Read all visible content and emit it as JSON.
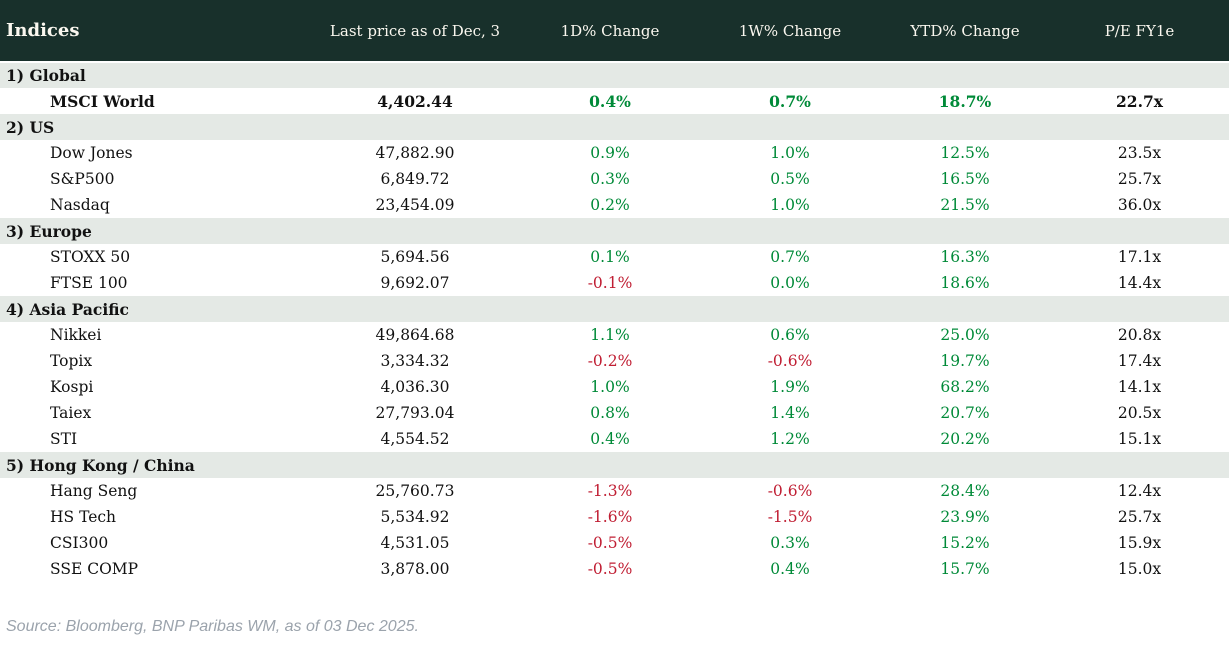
{
  "colors": {
    "header_bg": "#18302b",
    "header_text": "#faf7ef",
    "section_bg": "#e4e9e5",
    "positive": "#008a38",
    "negative": "#c01e33",
    "text": "#111111"
  },
  "header": {
    "columns": [
      "Indices",
      "Last price as of Dec, 3",
      "1D% Change",
      "1W% Change",
      "YTD% Change",
      "P/E FY1e"
    ]
  },
  "sections": [
    {
      "label": "1) Global",
      "rows": [
        {
          "name": "MSCI World",
          "last": "4,402.44",
          "d1": "0.4%",
          "w1": "0.7%",
          "ytd": "18.7%",
          "pe": "22.7x",
          "bold": true
        }
      ]
    },
    {
      "label": "2) US",
      "rows": [
        {
          "name": "Dow Jones",
          "last": "47,882.90",
          "d1": "0.9%",
          "w1": "1.0%",
          "ytd": "12.5%",
          "pe": "23.5x"
        },
        {
          "name": "S&P500",
          "last": "6,849.72",
          "d1": "0.3%",
          "w1": "0.5%",
          "ytd": "16.5%",
          "pe": "25.7x"
        },
        {
          "name": "Nasdaq",
          "last": "23,454.09",
          "d1": "0.2%",
          "w1": "1.0%",
          "ytd": "21.5%",
          "pe": "36.0x"
        }
      ]
    },
    {
      "label": "3) Europe",
      "rows": [
        {
          "name": "STOXX 50",
          "last": "5,694.56",
          "d1": "0.1%",
          "w1": "0.7%",
          "ytd": "16.3%",
          "pe": "17.1x"
        },
        {
          "name": "FTSE 100",
          "last": "9,692.07",
          "d1": "-0.1%",
          "w1": "0.0%",
          "ytd": "18.6%",
          "pe": "14.4x"
        }
      ]
    },
    {
      "label": "4) Asia Pacific",
      "rows": [
        {
          "name": "Nikkei",
          "last": "49,864.68",
          "d1": "1.1%",
          "w1": "0.6%",
          "ytd": "25.0%",
          "pe": "20.8x"
        },
        {
          "name": "Topix",
          "last": "3,334.32",
          "d1": "-0.2%",
          "w1": "-0.6%",
          "ytd": "19.7%",
          "pe": "17.4x"
        },
        {
          "name": "Kospi",
          "last": "4,036.30",
          "d1": "1.0%",
          "w1": "1.9%",
          "ytd": "68.2%",
          "pe": "14.1x"
        },
        {
          "name": "Taiex",
          "last": "27,793.04",
          "d1": "0.8%",
          "w1": "1.4%",
          "ytd": "20.7%",
          "pe": "20.5x"
        },
        {
          "name": "STI",
          "last": "4,554.52",
          "d1": "0.4%",
          "w1": "1.2%",
          "ytd": "20.2%",
          "pe": "15.1x"
        }
      ]
    },
    {
      "label": "5) Hong Kong / China",
      "rows": [
        {
          "name": "Hang Seng",
          "last": "25,760.73",
          "d1": "-1.3%",
          "w1": "-0.6%",
          "ytd": "28.4%",
          "pe": "12.4x"
        },
        {
          "name": "HS Tech",
          "last": "5,534.92",
          "d1": "-1.6%",
          "w1": "-1.5%",
          "ytd": "23.9%",
          "pe": "25.7x"
        },
        {
          "name": "CSI300",
          "last": "4,531.05",
          "d1": "-0.5%",
          "w1": "0.3%",
          "ytd": "15.2%",
          "pe": "15.9x"
        },
        {
          "name": "SSE COMP",
          "last": "3,878.00",
          "d1": "-0.5%",
          "w1": "0.4%",
          "ytd": "15.7%",
          "pe": "15.0x"
        }
      ]
    }
  ],
  "footer": {
    "source": "Source: Bloomberg, BNP Paribas WM, as of 03 Dec 2025."
  },
  "chart_data": {
    "type": "table",
    "title": "Indices",
    "columns": [
      "Indices",
      "Last price as of Dec, 3",
      "1D% Change",
      "1W% Change",
      "YTD% Change",
      "P/E FY1e"
    ],
    "rows": [
      [
        "1) Global",
        "",
        "",
        "",
        "",
        ""
      ],
      [
        "MSCI World",
        4402.44,
        0.4,
        0.7,
        18.7,
        22.7
      ],
      [
        "2) US",
        "",
        "",
        "",
        "",
        ""
      ],
      [
        "Dow Jones",
        47882.9,
        0.9,
        1.0,
        12.5,
        23.5
      ],
      [
        "S&P500",
        6849.72,
        0.3,
        0.5,
        16.5,
        25.7
      ],
      [
        "Nasdaq",
        23454.09,
        0.2,
        1.0,
        21.5,
        36.0
      ],
      [
        "3) Europe",
        "",
        "",
        "",
        "",
        ""
      ],
      [
        "STOXX 50",
        5694.56,
        0.1,
        0.7,
        16.3,
        17.1
      ],
      [
        "FTSE 100",
        9692.07,
        -0.1,
        0.0,
        18.6,
        14.4
      ],
      [
        "4) Asia Pacific",
        "",
        "",
        "",
        "",
        ""
      ],
      [
        "Nikkei",
        49864.68,
        1.1,
        0.6,
        25.0,
        20.8
      ],
      [
        "Topix",
        3334.32,
        -0.2,
        -0.6,
        19.7,
        17.4
      ],
      [
        "Kospi",
        4036.3,
        1.0,
        1.9,
        68.2,
        14.1
      ],
      [
        "Taiex",
        27793.04,
        0.8,
        1.4,
        20.7,
        20.5
      ],
      [
        "STI",
        4554.52,
        0.4,
        1.2,
        20.2,
        15.1
      ],
      [
        "5) Hong Kong / China",
        "",
        "",
        "",
        "",
        ""
      ],
      [
        "Hang Seng",
        25760.73,
        -1.3,
        -0.6,
        28.4,
        12.4
      ],
      [
        "HS Tech",
        5534.92,
        -1.6,
        -1.5,
        23.9,
        25.7
      ],
      [
        "CSI300",
        4531.05,
        -0.5,
        0.3,
        15.2,
        15.9
      ],
      [
        "SSE COMP",
        3878.0,
        -0.5,
        0.4,
        15.7,
        15.0
      ]
    ]
  }
}
